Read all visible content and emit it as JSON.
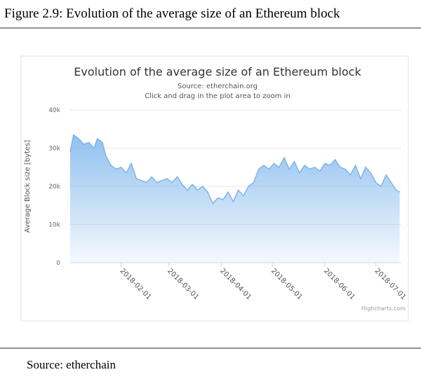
{
  "caption": "Figure 2.9: Evolution of the average size of an Ethereum block",
  "source": "Source: etherchain",
  "chart_data": {
    "type": "area",
    "title": "Evolution of the average size of an Ethereum block",
    "subtitle": "Source: etherchain.org",
    "note": "Click and drag in the plot area to zoom in",
    "y_label": "Average Block size [bytes]",
    "credits": "Highcharts.com",
    "color": "#7cb5ec",
    "grid": true,
    "xlim": [
      "2018-01-02",
      "2018-07-16"
    ],
    "xticks": [
      "2018-02-01",
      "2018-03-01",
      "2018-04-01",
      "2018-05-01",
      "2018-06-01",
      "2018-07-01"
    ],
    "ylim": [
      0,
      40000
    ],
    "yticks": [
      {
        "value": 0,
        "label": "0"
      },
      {
        "value": 10000,
        "label": "10k"
      },
      {
        "value": 20000,
        "label": "20k"
      },
      {
        "value": 30000,
        "label": "30k"
      },
      {
        "value": 40000,
        "label": "40k"
      }
    ],
    "x": [
      "2018-01-02",
      "2018-01-04",
      "2018-01-07",
      "2018-01-10",
      "2018-01-13",
      "2018-01-16",
      "2018-01-18",
      "2018-01-21",
      "2018-01-23",
      "2018-01-26",
      "2018-01-29",
      "2018-02-01",
      "2018-02-04",
      "2018-02-07",
      "2018-02-10",
      "2018-02-13",
      "2018-02-16",
      "2018-02-19",
      "2018-02-22",
      "2018-02-25",
      "2018-02-28",
      "2018-03-03",
      "2018-03-06",
      "2018-03-09",
      "2018-03-12",
      "2018-03-15",
      "2018-03-18",
      "2018-03-21",
      "2018-03-24",
      "2018-03-27",
      "2018-03-30",
      "2018-04-02",
      "2018-04-05",
      "2018-04-08",
      "2018-04-11",
      "2018-04-14",
      "2018-04-17",
      "2018-04-20",
      "2018-04-23",
      "2018-04-26",
      "2018-04-29",
      "2018-05-02",
      "2018-05-05",
      "2018-05-08",
      "2018-05-11",
      "2018-05-14",
      "2018-05-17",
      "2018-05-20",
      "2018-05-23",
      "2018-05-26",
      "2018-05-29",
      "2018-06-01",
      "2018-06-04",
      "2018-06-07",
      "2018-06-10",
      "2018-06-13",
      "2018-06-16",
      "2018-06-19",
      "2018-06-22",
      "2018-06-25",
      "2018-06-28",
      "2018-07-01",
      "2018-07-04",
      "2018-07-07",
      "2018-07-10",
      "2018-07-13",
      "2018-07-15"
    ],
    "values": [
      29000,
      33500,
      32500,
      31000,
      31500,
      30000,
      32500,
      31500,
      28000,
      25500,
      24500,
      25000,
      23500,
      26000,
      22000,
      21500,
      21000,
      22500,
      21000,
      21500,
      22000,
      21000,
      22500,
      20500,
      19000,
      20500,
      19000,
      20000,
      18500,
      15500,
      17000,
      16500,
      18500,
      16000,
      19000,
      17500,
      20000,
      21000,
      24500,
      25500,
      24500,
      26000,
      25000,
      27500,
      24500,
      26500,
      23500,
      25500,
      24500,
      25000,
      24000,
      26000,
      25500,
      27000,
      25000,
      24500,
      23000,
      25500,
      22000,
      25000,
      23500,
      21000,
      20000,
      23000,
      21000,
      19000,
      18500
    ]
  }
}
